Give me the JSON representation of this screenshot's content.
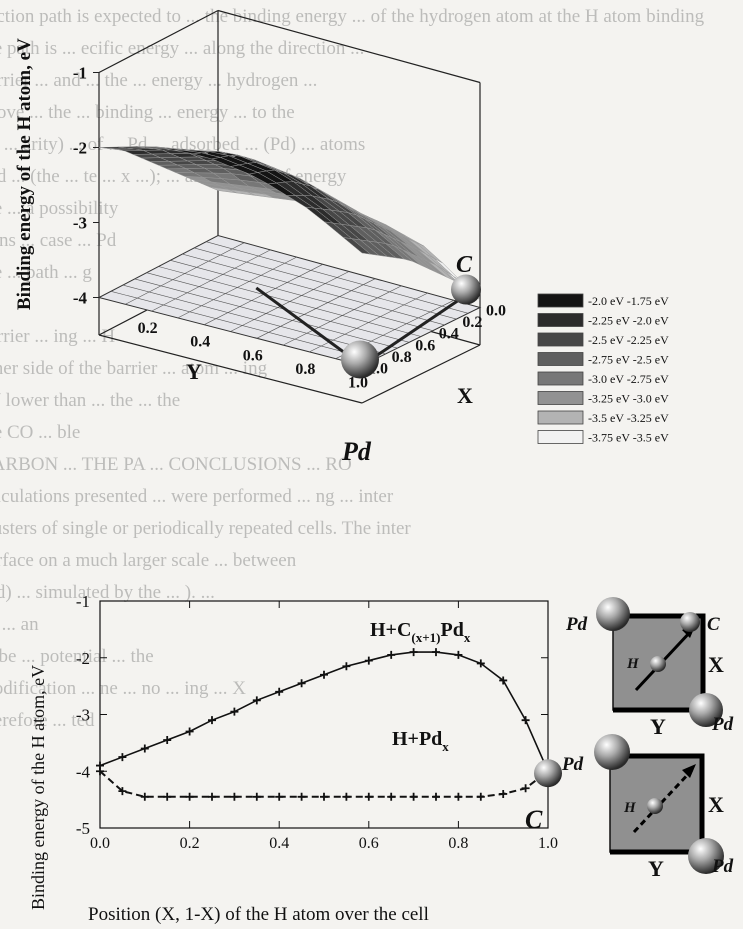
{
  "background_text_lines": [
    "a reaction path is expected to ... the binding energy ... of the hydrogen atom at the H atom binding",
    "... the path is ... ecific energy ... along the direction ...",
    "... barrier ... and ... the ... energy ... hydrogen ...",
    "... above ... the ... binding ... energy ... to the",
    "... (ie ... arity) ... of ... Pd ... adsorbed ... (Pd) ... atoms",
    "... and ... (the ... te ... x ...); ... an increase of energy",
    "... the ... a possibility",
    "... tions ... case ... Pd",
    "... the ... path ... g",
    "... tly",
    "... barrier ... ing ... H",
    "... other side of the barrier ... atom ... ing",
    "... eV lower than ... the ... the",
    "... the CO ... ble",
    "... CARBON ... THE PA ... CONCLUSIONS ... RO",
    "... calculations presented ... were performed ... ng ... inter",
    "... clusters of single or periodically repeated cells. The inter",
    "... surface on a much larger scale ... between",
    "... (Pd) ... simulated by the ... ). ...",
    "... ed ... an",
    "... to be ... potential ... the",
    "... modification ... ne ... no ... ing ... X",
    "... therefore ... ted"
  ],
  "chart_data": [
    {
      "type": "surface3d",
      "zlabel": "Binding energy of the H atom, eV",
      "xlabel": "X",
      "ylabel": "Y",
      "z_ticks": [
        "-1",
        "-2",
        "-3",
        "-4"
      ],
      "x_ticks": [
        "0.0",
        "0.2",
        "0.4",
        "0.6",
        "0.8",
        "1.0"
      ],
      "y_ticks": [
        "0.2",
        "0.4",
        "0.6",
        "0.8",
        "1.0"
      ],
      "corner_labels": {
        "carbon": "C",
        "palladium": "Pd"
      },
      "zlim": [
        -4.5,
        -1
      ],
      "surface_grid": {
        "x": [
          0.0,
          0.2,
          0.4,
          0.6,
          0.8,
          1.0
        ],
        "y": [
          0.0,
          0.2,
          0.4,
          0.6,
          0.8,
          1.0
        ],
        "z": [
          [
            -2.0,
            -1.8,
            -1.75,
            -1.85,
            -2.1,
            -2.5
          ],
          [
            -2.2,
            -2.0,
            -1.85,
            -1.95,
            -2.3,
            -2.7
          ],
          [
            -2.5,
            -2.3,
            -2.1,
            -2.2,
            -2.5,
            -2.9
          ],
          [
            -2.8,
            -2.6,
            -2.5,
            -2.55,
            -2.8,
            -3.2
          ],
          [
            -3.1,
            -3.0,
            -2.9,
            -2.9,
            -3.1,
            -3.5
          ],
          [
            -3.4,
            -3.3,
            -3.2,
            -3.2,
            -3.4,
            -3.9
          ]
        ]
      },
      "floor_level": -4.0,
      "legend": [
        {
          "label": "-2.0 eV  -1.75 eV",
          "color": "#141414"
        },
        {
          "label": "-2.25 eV  -2.0 eV",
          "color": "#2c2c2c"
        },
        {
          "label": "-2.5 eV  -2.25 eV",
          "color": "#474747"
        },
        {
          "label": "-2.75 eV  -2.5 eV",
          "color": "#5f5f5f"
        },
        {
          "label": "-3.0 eV  -2.75 eV",
          "color": "#777777"
        },
        {
          "label": "-3.25 eV  -3.0 eV",
          "color": "#929292"
        },
        {
          "label": "-3.5 eV  -3.25 eV",
          "color": "#b3b3b3"
        },
        {
          "label": "-3.75 eV  -3.5 eV",
          "color": "#f2f2f2"
        }
      ]
    },
    {
      "type": "line",
      "xlabel": "Position (X, 1-X) of the H atom over the cell",
      "ylabel": "Binding energy of the H atom, eV",
      "x_ticks": [
        "0.0",
        "0.2",
        "0.4",
        "0.6",
        "0.8",
        "1.0"
      ],
      "y_ticks": [
        "-1",
        "-2",
        "-3",
        "-4",
        "-5"
      ],
      "xlim": [
        0,
        1
      ],
      "ylim": [
        -5,
        -1
      ],
      "series": [
        {
          "name_main": "H+C",
          "name_sub": "(x+1)",
          "name_end": "Pd",
          "name_sub2": "x",
          "style": "solid",
          "x": [
            0.0,
            0.05,
            0.1,
            0.15,
            0.2,
            0.25,
            0.3,
            0.35,
            0.4,
            0.45,
            0.5,
            0.55,
            0.6,
            0.65,
            0.7,
            0.75,
            0.8,
            0.85,
            0.9,
            0.95,
            1.0
          ],
          "y": [
            -3.9,
            -3.75,
            -3.6,
            -3.45,
            -3.3,
            -3.1,
            -2.95,
            -2.75,
            -2.6,
            -2.45,
            -2.3,
            -2.15,
            -2.05,
            -1.95,
            -1.9,
            -1.9,
            -1.95,
            -2.1,
            -2.4,
            -3.1,
            -4.0
          ]
        },
        {
          "name_main": "H+Pd",
          "name_sub": "x",
          "style": "dashed",
          "x": [
            0.0,
            0.05,
            0.1,
            0.15,
            0.2,
            0.25,
            0.3,
            0.35,
            0.4,
            0.45,
            0.5,
            0.55,
            0.6,
            0.65,
            0.7,
            0.75,
            0.8,
            0.85,
            0.9,
            0.95,
            1.0
          ],
          "y": [
            -4.0,
            -4.35,
            -4.45,
            -4.45,
            -4.45,
            -4.45,
            -4.45,
            -4.45,
            -4.45,
            -4.45,
            -4.45,
            -4.45,
            -4.45,
            -4.45,
            -4.45,
            -4.45,
            -4.45,
            -4.45,
            -4.4,
            -4.3,
            -4.0
          ]
        }
      ],
      "end_label": "C"
    }
  ],
  "cell_diagrams": [
    {
      "tl": "Pd",
      "tr": "C",
      "br": "Pd",
      "atom": "H",
      "side": "X",
      "bottom": "Y",
      "arrow": "solid"
    },
    {
      "tl": "Pd",
      "br": "Pd",
      "atom": "H",
      "side": "X",
      "bottom": "Y",
      "arrow": "dashed"
    }
  ]
}
